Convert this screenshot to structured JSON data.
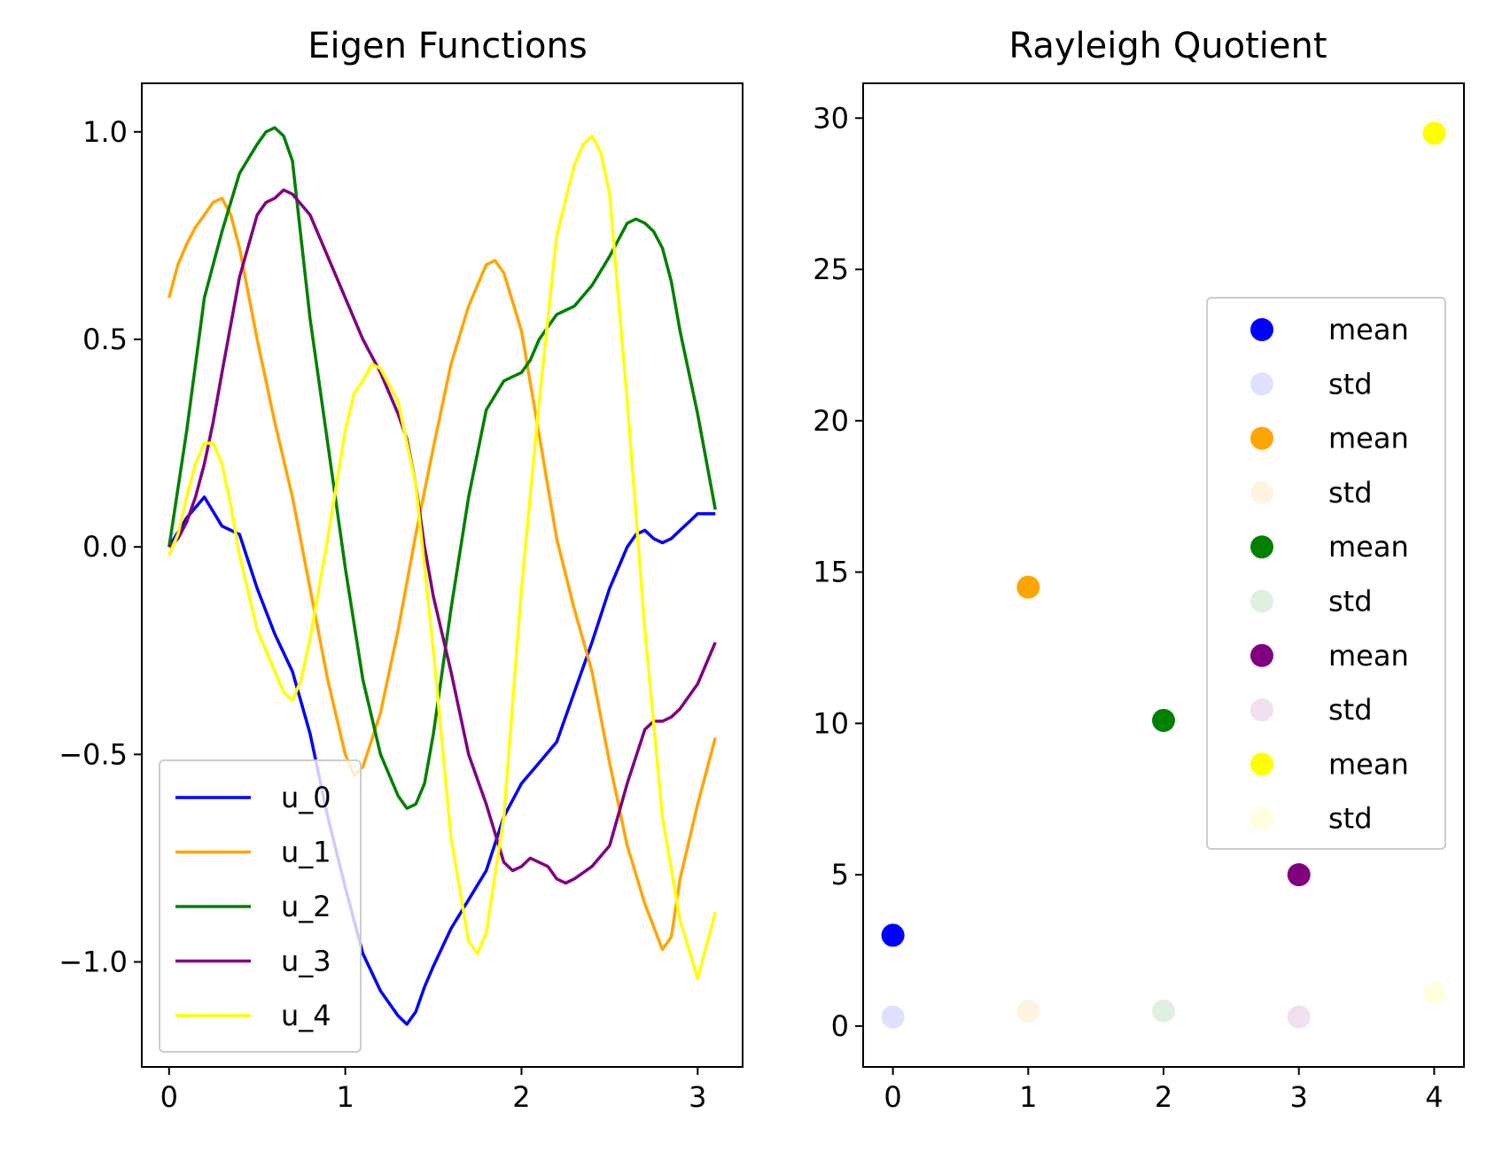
{
  "chart_data": [
    {
      "type": "line",
      "title": "Eigen Functions",
      "xlabel": "",
      "ylabel": "",
      "xlim": [
        -0.155,
        3.255
      ],
      "ylim": [
        -1.253,
        1.117
      ],
      "xticks": [
        0,
        1,
        2,
        3
      ],
      "yticks": [
        -1.0,
        -0.5,
        0.0,
        0.5,
        1.0
      ],
      "xtick_labels": [
        "0",
        "1",
        "2",
        "3"
      ],
      "ytick_labels": [
        "−1.0",
        "−0.5",
        "0.0",
        "0.5",
        "1.0"
      ],
      "legend_position": "lower-left",
      "series": [
        {
          "name": "u_0",
          "color": "#0000ff",
          "x": [
            0,
            0.1,
            0.2,
            0.3,
            0.4,
            0.5,
            0.6,
            0.7,
            0.8,
            0.9,
            1.0,
            1.1,
            1.2,
            1.3,
            1.35,
            1.4,
            1.45,
            1.5,
            1.6,
            1.7,
            1.8,
            1.9,
            2.0,
            2.1,
            2.2,
            2.3,
            2.4,
            2.5,
            2.6,
            2.65,
            2.7,
            2.75,
            2.8,
            2.85,
            2.9,
            2.95,
            3.0,
            3.1
          ],
          "y": [
            0.0,
            0.07,
            0.12,
            0.05,
            0.03,
            -0.1,
            -0.21,
            -0.3,
            -0.45,
            -0.65,
            -0.82,
            -0.98,
            -1.07,
            -1.13,
            -1.15,
            -1.12,
            -1.06,
            -1.01,
            -0.92,
            -0.85,
            -0.78,
            -0.65,
            -0.57,
            -0.52,
            -0.47,
            -0.35,
            -0.23,
            -0.1,
            0.0,
            0.03,
            0.04,
            0.02,
            0.01,
            0.02,
            0.04,
            0.06,
            0.08,
            0.08
          ]
        },
        {
          "name": "u_1",
          "color": "#ffa500",
          "x": [
            0,
            0.05,
            0.1,
            0.15,
            0.2,
            0.25,
            0.3,
            0.35,
            0.4,
            0.5,
            0.6,
            0.7,
            0.8,
            0.9,
            1.0,
            1.05,
            1.1,
            1.2,
            1.3,
            1.4,
            1.5,
            1.6,
            1.7,
            1.8,
            1.85,
            1.9,
            2.0,
            2.1,
            2.2,
            2.3,
            2.4,
            2.5,
            2.6,
            2.7,
            2.8,
            2.85,
            2.9,
            3.0,
            3.1
          ],
          "y": [
            0.6,
            0.68,
            0.73,
            0.77,
            0.8,
            0.83,
            0.84,
            0.8,
            0.72,
            0.5,
            0.3,
            0.12,
            -0.1,
            -0.32,
            -0.5,
            -0.55,
            -0.53,
            -0.4,
            -0.2,
            0.03,
            0.24,
            0.44,
            0.58,
            0.68,
            0.69,
            0.66,
            0.52,
            0.27,
            0.02,
            -0.15,
            -0.3,
            -0.52,
            -0.72,
            -0.86,
            -0.97,
            -0.94,
            -0.8,
            -0.62,
            -0.46
          ]
        },
        {
          "name": "u_2",
          "color": "#008000",
          "x": [
            0,
            0.1,
            0.2,
            0.3,
            0.4,
            0.5,
            0.55,
            0.6,
            0.65,
            0.7,
            0.8,
            0.9,
            1.0,
            1.1,
            1.2,
            1.3,
            1.35,
            1.4,
            1.45,
            1.5,
            1.6,
            1.7,
            1.8,
            1.9,
            1.95,
            2.0,
            2.05,
            2.1,
            2.2,
            2.3,
            2.4,
            2.5,
            2.6,
            2.65,
            2.7,
            2.75,
            2.8,
            2.85,
            2.9,
            3.0,
            3.1
          ],
          "y": [
            0.0,
            0.28,
            0.6,
            0.76,
            0.9,
            0.97,
            1.0,
            1.01,
            0.99,
            0.93,
            0.55,
            0.25,
            -0.05,
            -0.32,
            -0.5,
            -0.6,
            -0.63,
            -0.62,
            -0.57,
            -0.45,
            -0.15,
            0.12,
            0.33,
            0.4,
            0.41,
            0.42,
            0.45,
            0.5,
            0.56,
            0.58,
            0.63,
            0.7,
            0.78,
            0.79,
            0.78,
            0.76,
            0.72,
            0.64,
            0.52,
            0.32,
            0.09
          ]
        },
        {
          "name": "u_3",
          "color": "#800080",
          "x": [
            0,
            0.05,
            0.1,
            0.15,
            0.2,
            0.25,
            0.3,
            0.4,
            0.5,
            0.55,
            0.6,
            0.65,
            0.7,
            0.8,
            0.9,
            1.0,
            1.1,
            1.2,
            1.3,
            1.35,
            1.4,
            1.45,
            1.5,
            1.6,
            1.7,
            1.8,
            1.9,
            1.95,
            2.0,
            2.05,
            2.1,
            2.15,
            2.2,
            2.25,
            2.3,
            2.4,
            2.5,
            2.6,
            2.7,
            2.75,
            2.8,
            2.85,
            2.9,
            3.0,
            3.1
          ],
          "y": [
            0.0,
            0.02,
            0.06,
            0.12,
            0.2,
            0.3,
            0.42,
            0.65,
            0.8,
            0.83,
            0.84,
            0.86,
            0.85,
            0.8,
            0.7,
            0.6,
            0.5,
            0.42,
            0.32,
            0.26,
            0.15,
            0.0,
            -0.12,
            -0.3,
            -0.5,
            -0.62,
            -0.76,
            -0.78,
            -0.77,
            -0.75,
            -0.76,
            -0.77,
            -0.8,
            -0.81,
            -0.8,
            -0.77,
            -0.72,
            -0.57,
            -0.44,
            -0.42,
            -0.42,
            -0.41,
            -0.39,
            -0.33,
            -0.23
          ]
        },
        {
          "name": "u_4",
          "color": "#ffff00",
          "x": [
            0,
            0.05,
            0.1,
            0.15,
            0.2,
            0.25,
            0.3,
            0.35,
            0.4,
            0.5,
            0.6,
            0.65,
            0.7,
            0.75,
            0.8,
            0.9,
            1.0,
            1.05,
            1.1,
            1.15,
            1.2,
            1.3,
            1.4,
            1.5,
            1.6,
            1.7,
            1.75,
            1.8,
            1.9,
            2.0,
            2.1,
            2.2,
            2.3,
            2.35,
            2.4,
            2.45,
            2.5,
            2.6,
            2.7,
            2.8,
            2.9,
            3.0,
            3.1
          ],
          "y": [
            -0.02,
            0.03,
            0.12,
            0.2,
            0.25,
            0.25,
            0.2,
            0.1,
            -0.02,
            -0.2,
            -0.3,
            -0.35,
            -0.37,
            -0.32,
            -0.22,
            0.02,
            0.28,
            0.37,
            0.4,
            0.44,
            0.43,
            0.35,
            0.15,
            -0.25,
            -0.7,
            -0.95,
            -0.98,
            -0.93,
            -0.65,
            -0.1,
            0.35,
            0.75,
            0.92,
            0.97,
            0.99,
            0.95,
            0.85,
            0.35,
            -0.2,
            -0.65,
            -0.9,
            -1.04,
            -0.88
          ]
        }
      ]
    },
    {
      "type": "scatter",
      "title": "Rayleigh Quotient",
      "xlabel": "",
      "ylabel": "",
      "xlim": [
        -0.22,
        4.22
      ],
      "ylim": [
        -1.35,
        31.15
      ],
      "xticks": [
        0,
        1,
        2,
        3,
        4
      ],
      "yticks": [
        0,
        5,
        10,
        15,
        20,
        25,
        30
      ],
      "xtick_labels": [
        "0",
        "1",
        "2",
        "3",
        "4"
      ],
      "ytick_labels": [
        "0",
        "5",
        "10",
        "15",
        "20",
        "25",
        "30"
      ],
      "legend_position": "center-right",
      "series": [
        {
          "name": "mean",
          "color": "#0000ff",
          "alpha": 1.0,
          "x": [
            0
          ],
          "y": [
            3.0
          ]
        },
        {
          "name": "std",
          "color": "#0000ff",
          "alpha": 0.12,
          "x": [
            0
          ],
          "y": [
            0.3
          ]
        },
        {
          "name": "mean",
          "color": "#ffa500",
          "alpha": 1.0,
          "x": [
            1
          ],
          "y": [
            14.5
          ]
        },
        {
          "name": "std",
          "color": "#ffa500",
          "alpha": 0.12,
          "x": [
            1
          ],
          "y": [
            0.5
          ]
        },
        {
          "name": "mean",
          "color": "#008000",
          "alpha": 1.0,
          "x": [
            2
          ],
          "y": [
            10.1
          ]
        },
        {
          "name": "std",
          "color": "#008000",
          "alpha": 0.12,
          "x": [
            2
          ],
          "y": [
            0.5
          ]
        },
        {
          "name": "mean",
          "color": "#800080",
          "alpha": 1.0,
          "x": [
            3
          ],
          "y": [
            5.0
          ]
        },
        {
          "name": "std",
          "color": "#800080",
          "alpha": 0.12,
          "x": [
            3
          ],
          "y": [
            0.3
          ]
        },
        {
          "name": "mean",
          "color": "#ffff00",
          "alpha": 1.0,
          "x": [
            4
          ],
          "y": [
            29.5
          ]
        },
        {
          "name": "std",
          "color": "#ffff00",
          "alpha": 0.12,
          "x": [
            4
          ],
          "y": [
            1.1
          ]
        }
      ]
    }
  ]
}
